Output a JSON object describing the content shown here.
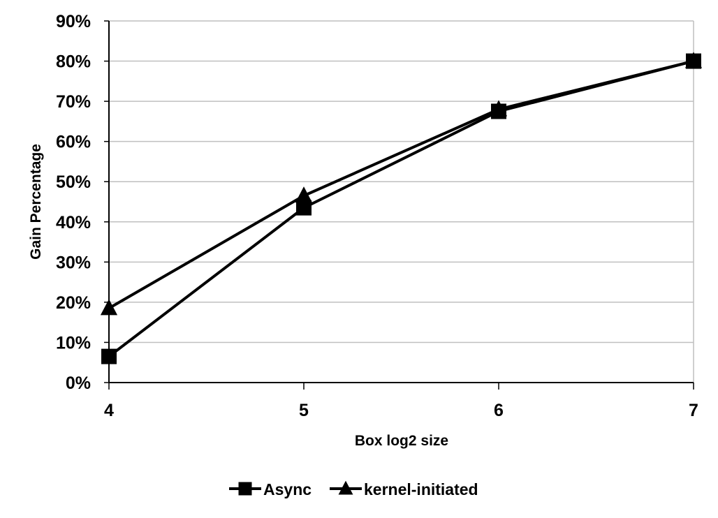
{
  "chart_data": {
    "type": "line",
    "xlabel": "Box log2 size",
    "ylabel": "Gain Percentage",
    "x": [
      4,
      5,
      6,
      7
    ],
    "x_tick_labels": [
      "4",
      "5",
      "6",
      "7"
    ],
    "y_tick_labels": [
      "0%",
      "10%",
      "20%",
      "30%",
      "40%",
      "50%",
      "60%",
      "70%",
      "80%",
      "90%"
    ],
    "ylim": [
      0,
      90
    ],
    "grid": true,
    "legend_position": "bottom",
    "series": [
      {
        "name": "Async",
        "marker": "square",
        "color": "#000000",
        "values": [
          6.5,
          43.5,
          67.5,
          80
        ]
      },
      {
        "name": "kernel-initiated",
        "marker": "triangle",
        "color": "#000000",
        "values": [
          18.5,
          46.5,
          68.0,
          80
        ]
      }
    ]
  }
}
